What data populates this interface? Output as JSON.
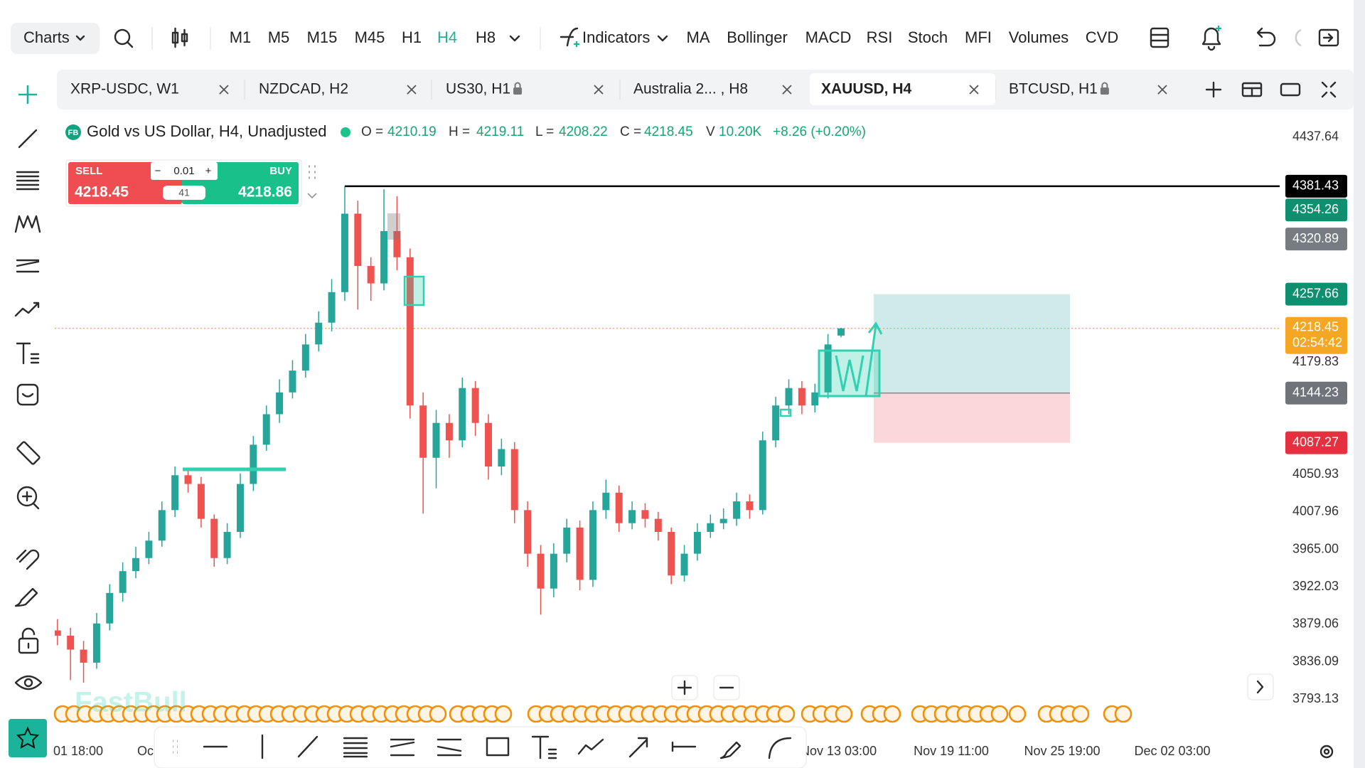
{
  "toolbar": {
    "charts": "Charts",
    "timeframes": [
      {
        "label": "M1",
        "active": false
      },
      {
        "label": "M5",
        "active": false
      },
      {
        "label": "M15",
        "active": false
      },
      {
        "label": "M45",
        "active": false
      },
      {
        "label": "H1",
        "active": false
      },
      {
        "label": "H4",
        "active": true
      },
      {
        "label": "H8",
        "active": false
      }
    ],
    "indicators": "Indicators",
    "indicator_buttons": [
      "MA",
      "Bollinger",
      "MACD",
      "RSI",
      "Stoch",
      "MFI",
      "Volumes",
      "CVD"
    ]
  },
  "tabs": [
    {
      "label": "XRP-USDC, W1",
      "locked": false,
      "active": false
    },
    {
      "label": "NZDCAD, H2",
      "locked": false,
      "active": false
    },
    {
      "label": "US30, H1",
      "locked": true,
      "active": false
    },
    {
      "label": "Australia 2... , H8",
      "locked": false,
      "active": false
    },
    {
      "label": "XAUUSD, H4",
      "locked": false,
      "active": true
    },
    {
      "label": "BTCUSD, H1",
      "locked": true,
      "active": false
    }
  ],
  "legend": {
    "badge": "FB",
    "symbol": "Gold vs US Dollar, H4, Unadjusted",
    "items": [
      {
        "label": "O =",
        "value": "4210.19"
      },
      {
        "label": "H =",
        "value": "4219.11"
      },
      {
        "label": "L =",
        "value": "4208.22"
      },
      {
        "label": "C =",
        "value": "4218.45"
      },
      {
        "label": "V",
        "value": "10.20K"
      }
    ],
    "change": "+8.26 (+0.20%)"
  },
  "trade": {
    "sell": "SELL",
    "sell_price": "4218.45",
    "lot": "0.01",
    "spread": "41",
    "buy": "BUY",
    "buy_price": "4218.86"
  },
  "chart_data": {
    "type": "candlestick",
    "open": [
      3872,
      3866,
      3850,
      3835,
      3880,
      3915,
      3940,
      3955,
      3975,
      4010,
      4050,
      4040,
      4000,
      3955,
      3985,
      4040,
      4085,
      4120,
      4145,
      4170,
      4200,
      4225,
      4260,
      4350,
      4290,
      4270,
      4330,
      4300,
      4130,
      4070,
      4110,
      4090,
      4150,
      4110,
      4060,
      4080,
      4010,
      3960,
      3920,
      3960,
      3990,
      3930,
      4010,
      4030,
      3995,
      4010,
      4000,
      3985,
      3935,
      3960,
      3985,
      3995,
      4000,
      4020,
      4010,
      4090,
      4130,
      4150,
      4130,
      4145,
      4210.19
    ],
    "high": [
      3885,
      3875,
      3860,
      3892,
      3925,
      3950,
      3968,
      3985,
      4020,
      4060,
      4058,
      4048,
      4005,
      3995,
      4052,
      4095,
      4130,
      4160,
      4182,
      4212,
      4238,
      4275,
      4381.43,
      4365,
      4300,
      4378,
      4370,
      4310,
      4145,
      4125,
      4120,
      4162,
      4158,
      4120,
      4092,
      4088,
      4020,
      3970,
      3972,
      4000,
      3998,
      4020,
      4045,
      4038,
      4020,
      4018,
      4008,
      3990,
      3970,
      3995,
      4005,
      4012,
      4030,
      4028,
      4100,
      4140,
      4160,
      4158,
      4155,
      4212,
      4219.11
    ],
    "low": [
      3855,
      3815,
      3812,
      3828,
      3872,
      3905,
      3932,
      3948,
      3968,
      4002,
      4030,
      3990,
      3945,
      3948,
      3978,
      4032,
      4078,
      4110,
      4138,
      4162,
      4192,
      4215,
      4250,
      4240,
      4250,
      4262,
      4285,
      4115,
      4006,
      4035,
      4070,
      4082,
      4095,
      4045,
      4050,
      3995,
      3945,
      3890,
      3910,
      3950,
      3918,
      3922,
      4000,
      3985,
      3988,
      3990,
      3975,
      3925,
      3928,
      3952,
      3978,
      3988,
      3992,
      4000,
      4005,
      4082,
      4120,
      4120,
      4122,
      4138,
      4208.22
    ],
    "close": [
      3866,
      3850,
      3835,
      3880,
      3915,
      3940,
      3955,
      3975,
      4010,
      4050,
      4040,
      4000,
      3955,
      3985,
      4040,
      4085,
      4120,
      4145,
      4170,
      4200,
      4225,
      4260,
      4350,
      4290,
      4270,
      4330,
      4300,
      4130,
      4070,
      4110,
      4090,
      4150,
      4110,
      4060,
      4080,
      4010,
      3960,
      3920,
      3960,
      3990,
      3930,
      4010,
      4030,
      3995,
      4010,
      4000,
      3985,
      3935,
      3960,
      3985,
      3995,
      4000,
      4020,
      4010,
      4090,
      4130,
      4150,
      4130,
      4145,
      4200,
      4218.45
    ],
    "up_color": "#26a69a",
    "down_color": "#ef5350",
    "ylim": [
      3755,
      4467
    ],
    "yticks": [
      4437.64,
      4179.83,
      4050.93,
      4007.96,
      {
        "value": 3965,
        "label": "3965.00"
      },
      3922.03,
      3879.06,
      3836.09,
      3793.13
    ],
    "grid": false,
    "x_labels": [
      "01 18:00",
      "Oc",
      "Nov 13 03:00",
      "Nov 19 11:00",
      "Nov 25 19:00",
      "Dec 02 03:00"
    ],
    "price_markers": [
      {
        "value": 4381.43,
        "color": "#000000",
        "line": true
      },
      {
        "value": 4354.26,
        "color": "#0e8f6f",
        "line": false
      },
      {
        "value": 4320.89,
        "color": "#777b82",
        "line": false
      }
    ],
    "current_price": {
      "value": 4218.45,
      "countdown": "02:54:42",
      "color": "#f5a623"
    },
    "position": {
      "take_profit": {
        "value": 4257.66,
        "color": "#0e8f6f"
      },
      "entry": {
        "value": 4144.23,
        "color": "#6f737a"
      },
      "stop_loss": {
        "value": 4087.27,
        "color": "#e5303f"
      }
    },
    "watermark": "FastBull"
  }
}
